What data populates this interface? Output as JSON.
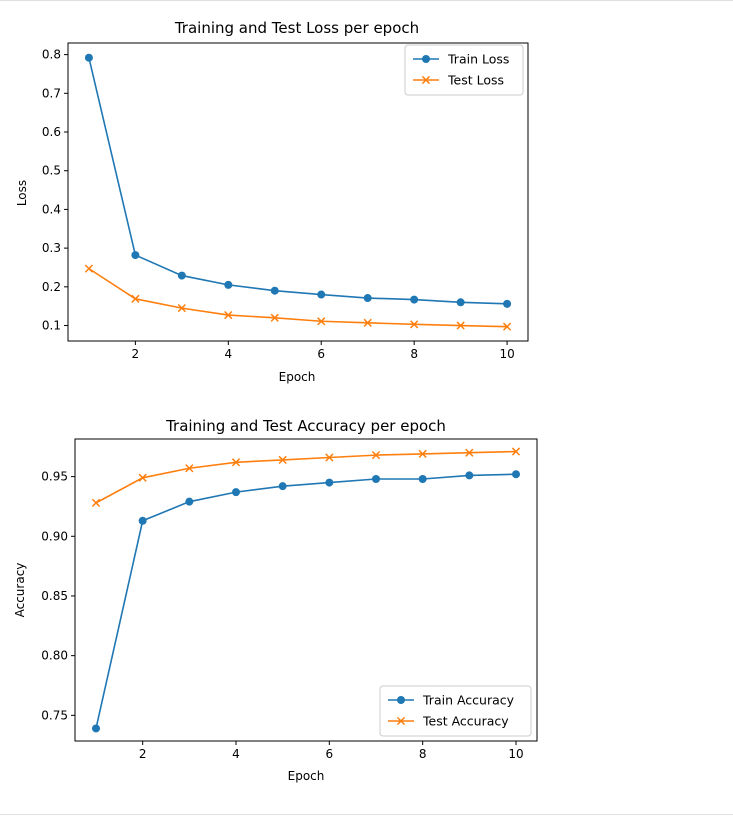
{
  "chart_data": [
    {
      "type": "line",
      "title": "Training and Test Loss per epoch",
      "xlabel": "Epoch",
      "ylabel": "Loss",
      "x": [
        1,
        2,
        3,
        4,
        5,
        6,
        7,
        8,
        9,
        10
      ],
      "xlim": [
        0.55,
        10.45
      ],
      "ylim": [
        0.06,
        0.83
      ],
      "xticks": [
        2,
        4,
        6,
        8,
        10
      ],
      "xtick_labels": [
        "2",
        "4",
        "6",
        "8",
        "10"
      ],
      "yticks": [
        0.1,
        0.2,
        0.3,
        0.4,
        0.5,
        0.6,
        0.7,
        0.8
      ],
      "ytick_labels": [
        "0.1",
        "0.2",
        "0.3",
        "0.4",
        "0.5",
        "0.6",
        "0.7",
        "0.8"
      ],
      "grid": false,
      "legend_position": "top-right",
      "series": [
        {
          "name": "Train Loss",
          "marker": "circle",
          "color": "#1f77b4",
          "values": [
            0.792,
            0.282,
            0.229,
            0.205,
            0.19,
            0.18,
            0.171,
            0.167,
            0.16,
            0.156
          ]
        },
        {
          "name": "Test Loss",
          "marker": "x",
          "color": "#ff7f0e",
          "values": [
            0.247,
            0.169,
            0.145,
            0.127,
            0.12,
            0.111,
            0.107,
            0.103,
            0.1,
            0.097
          ]
        }
      ]
    },
    {
      "type": "line",
      "title": "Training and Test Accuracy per epoch",
      "xlabel": "Epoch",
      "ylabel": "Accuracy",
      "x": [
        1,
        2,
        3,
        4,
        5,
        6,
        7,
        8,
        9,
        10
      ],
      "xlim": [
        0.55,
        10.45
      ],
      "ylim": [
        0.7285,
        0.9815
      ],
      "xticks": [
        2,
        4,
        6,
        8,
        10
      ],
      "xtick_labels": [
        "2",
        "4",
        "6",
        "8",
        "10"
      ],
      "yticks": [
        0.75,
        0.8,
        0.85,
        0.9,
        0.95
      ],
      "ytick_labels": [
        "0.75",
        "0.80",
        "0.85",
        "0.90",
        "0.95"
      ],
      "grid": false,
      "legend_position": "bottom-right",
      "series": [
        {
          "name": "Train Accuracy",
          "marker": "circle",
          "color": "#1f77b4",
          "values": [
            0.739,
            0.913,
            0.929,
            0.937,
            0.942,
            0.945,
            0.948,
            0.948,
            0.951,
            0.952
          ]
        },
        {
          "name": "Test Accuracy",
          "marker": "x",
          "color": "#ff7f0e",
          "values": [
            0.928,
            0.949,
            0.957,
            0.962,
            0.964,
            0.966,
            0.968,
            0.969,
            0.97,
            0.971
          ]
        }
      ]
    }
  ]
}
